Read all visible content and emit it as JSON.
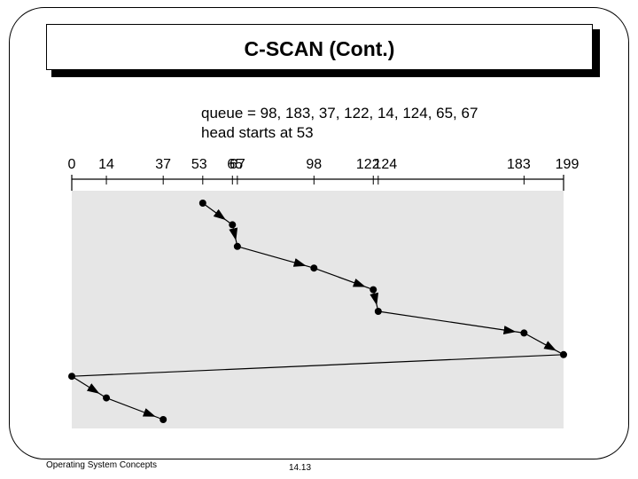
{
  "slide": {
    "title": "C-SCAN (Cont.)",
    "footer_left": "Operating System Concepts",
    "footer_page": "14.13"
  },
  "info": {
    "queue_line": "queue = 98, 183, 37, 122, 14, 124, 65, 67",
    "head_line": "head starts at 53"
  },
  "colors": {
    "plot_background": "#e6e6e6",
    "ink": "#000000"
  },
  "chart_data": {
    "type": "line",
    "title": "",
    "axis_ticks": [
      0,
      14,
      37,
      53,
      65,
      67,
      98,
      122,
      124,
      183,
      199
    ],
    "xlim": [
      0,
      199
    ],
    "head_start": 53,
    "queue": [
      98,
      183,
      37,
      122,
      14,
      124,
      65,
      67
    ],
    "service_order": [
      53,
      65,
      67,
      98,
      122,
      124,
      183,
      199,
      0,
      14,
      37
    ]
  }
}
